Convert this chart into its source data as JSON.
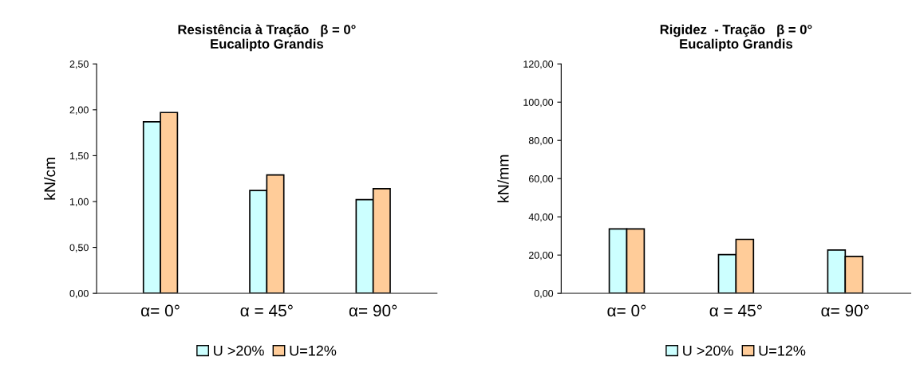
{
  "chart_data": [
    {
      "type": "bar",
      "title": "Resistência à Tração   β = 0°\nEucalipto Grandis",
      "ylabel": "kN/cm",
      "categories": [
        "α= 0°",
        "α = 45°",
        "α= 90°"
      ],
      "series": [
        {
          "name": "U >20%",
          "color": "#ccffff",
          "values": [
            1.87,
            1.12,
            1.02
          ]
        },
        {
          "name": "U=12%",
          "color": "#ffcc99",
          "values": [
            1.97,
            1.29,
            1.14
          ]
        }
      ],
      "ylim": [
        0,
        2.5
      ],
      "yticks": [
        {
          "value": 0,
          "label": "0,00"
        },
        {
          "value": 0.5,
          "label": "0,50"
        },
        {
          "value": 1.0,
          "label": "1,00"
        },
        {
          "value": 1.5,
          "label": "1,50"
        },
        {
          "value": 2.0,
          "label": "2,00"
        },
        {
          "value": 2.5,
          "label": "2,50"
        }
      ],
      "grid": false,
      "legend": "bottom"
    },
    {
      "type": "bar",
      "title": "Rigidez  - Tração   β = 0°\nEucalipto Grandis",
      "ylabel": "kN/mm",
      "categories": [
        "α= 0°",
        "α = 45°",
        "α= 90°"
      ],
      "series": [
        {
          "name": "U >20%",
          "color": "#ccffff",
          "values": [
            33.7,
            20.2,
            22.6
          ]
        },
        {
          "name": "U=12%",
          "color": "#ffcc99",
          "values": [
            33.7,
            28.2,
            19.3
          ]
        }
      ],
      "ylim": [
        0,
        120
      ],
      "yticks": [
        {
          "value": 0,
          "label": "0,00"
        },
        {
          "value": 20,
          "label": "20,00"
        },
        {
          "value": 40,
          "label": "40,00"
        },
        {
          "value": 60,
          "label": "60,00"
        },
        {
          "value": 80,
          "label": "80,00"
        },
        {
          "value": 100,
          "label": "100,00"
        },
        {
          "value": 120,
          "label": "120,00"
        }
      ],
      "grid": false,
      "legend": "bottom"
    }
  ]
}
